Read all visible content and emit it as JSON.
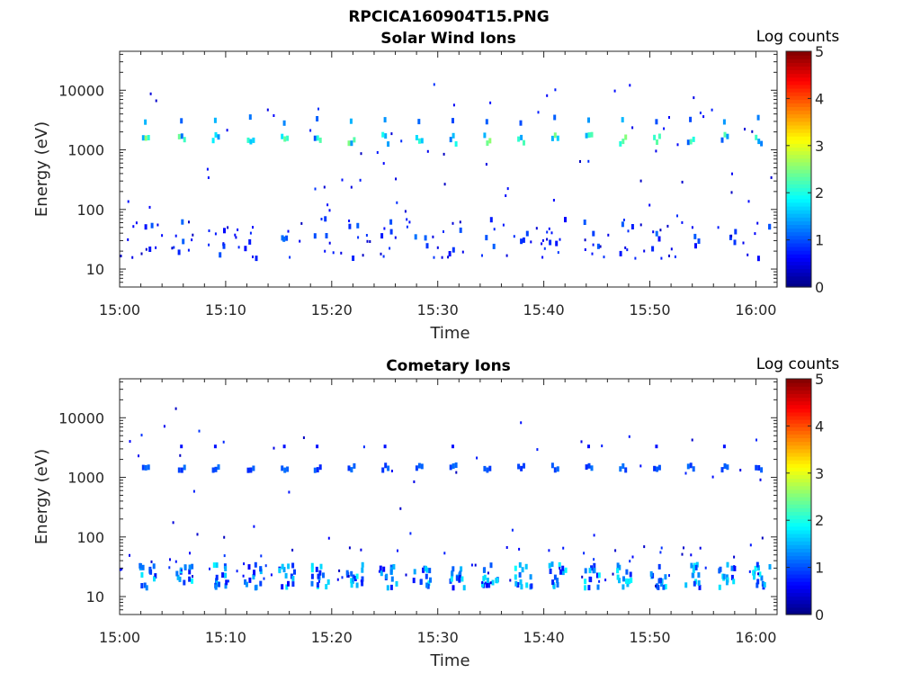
{
  "figure": {
    "main_title": "RPCICA160904T15.PNG"
  },
  "chart_data": [
    {
      "type": "heatmap",
      "title": "Solar Wind Ions",
      "xlabel": "Time",
      "ylabel": "Energy (eV)",
      "yscale": "log",
      "ylim": [
        5,
        45000
      ],
      "xlim": [
        "15:00",
        "16:02"
      ],
      "x_tick_labels": [
        "15:00",
        "15:10",
        "15:20",
        "15:30",
        "15:40",
        "15:50",
        "16:00"
      ],
      "y_tick_labels": [
        "10",
        "100",
        "1000",
        "10000"
      ],
      "colorbar": {
        "label": "Log counts",
        "range": [
          0,
          5
        ],
        "tick_labels": [
          "0",
          "1",
          "2",
          "3",
          "4",
          "5"
        ]
      },
      "pattern": {
        "burst_times_min": [
          2.4,
          5.8,
          9.0,
          12.3,
          15.5,
          18.6,
          21.8,
          25.0,
          28.2,
          31.4,
          34.6,
          37.8,
          41.0,
          44.2,
          47.4,
          50.6,
          53.8,
          57.0,
          60.2
        ],
        "main_band_eV": [
          1250,
          1800
        ],
        "main_band_log_counts": [
          1.0,
          2.6
        ],
        "upper_band_eV": [
          2800,
          3600
        ],
        "upper_band_log_counts": [
          0.9,
          1.6
        ],
        "low_energy_eV": [
          15,
          70
        ],
        "low_energy_log_counts": [
          0.6,
          1.2
        ]
      }
    },
    {
      "type": "heatmap",
      "title": "Cometary Ions",
      "xlabel": "Time",
      "ylabel": "Energy (eV)",
      "yscale": "log",
      "ylim": [
        5,
        45000
      ],
      "xlim": [
        "15:00",
        "16:02"
      ],
      "x_tick_labels": [
        "15:00",
        "15:10",
        "15:20",
        "15:30",
        "15:40",
        "15:50",
        "16:00"
      ],
      "y_tick_labels": [
        "10",
        "100",
        "1000",
        "10000"
      ],
      "colorbar": {
        "label": "Log counts",
        "range": [
          0,
          5
        ],
        "tick_labels": [
          "0",
          "1",
          "2",
          "3",
          "4",
          "5"
        ]
      },
      "pattern": {
        "burst_times_min": [
          2.4,
          5.8,
          9.0,
          12.3,
          15.5,
          18.6,
          21.8,
          25.0,
          28.2,
          31.4,
          34.6,
          37.8,
          41.0,
          44.2,
          47.4,
          50.6,
          53.8,
          57.0,
          60.2
        ],
        "main_band_eV": [
          1300,
          1600
        ],
        "main_band_log_counts": [
          0.8,
          1.2
        ],
        "low_energy_eV": [
          14,
          35
        ],
        "low_energy_log_counts": [
          0.6,
          1.9
        ]
      }
    }
  ]
}
